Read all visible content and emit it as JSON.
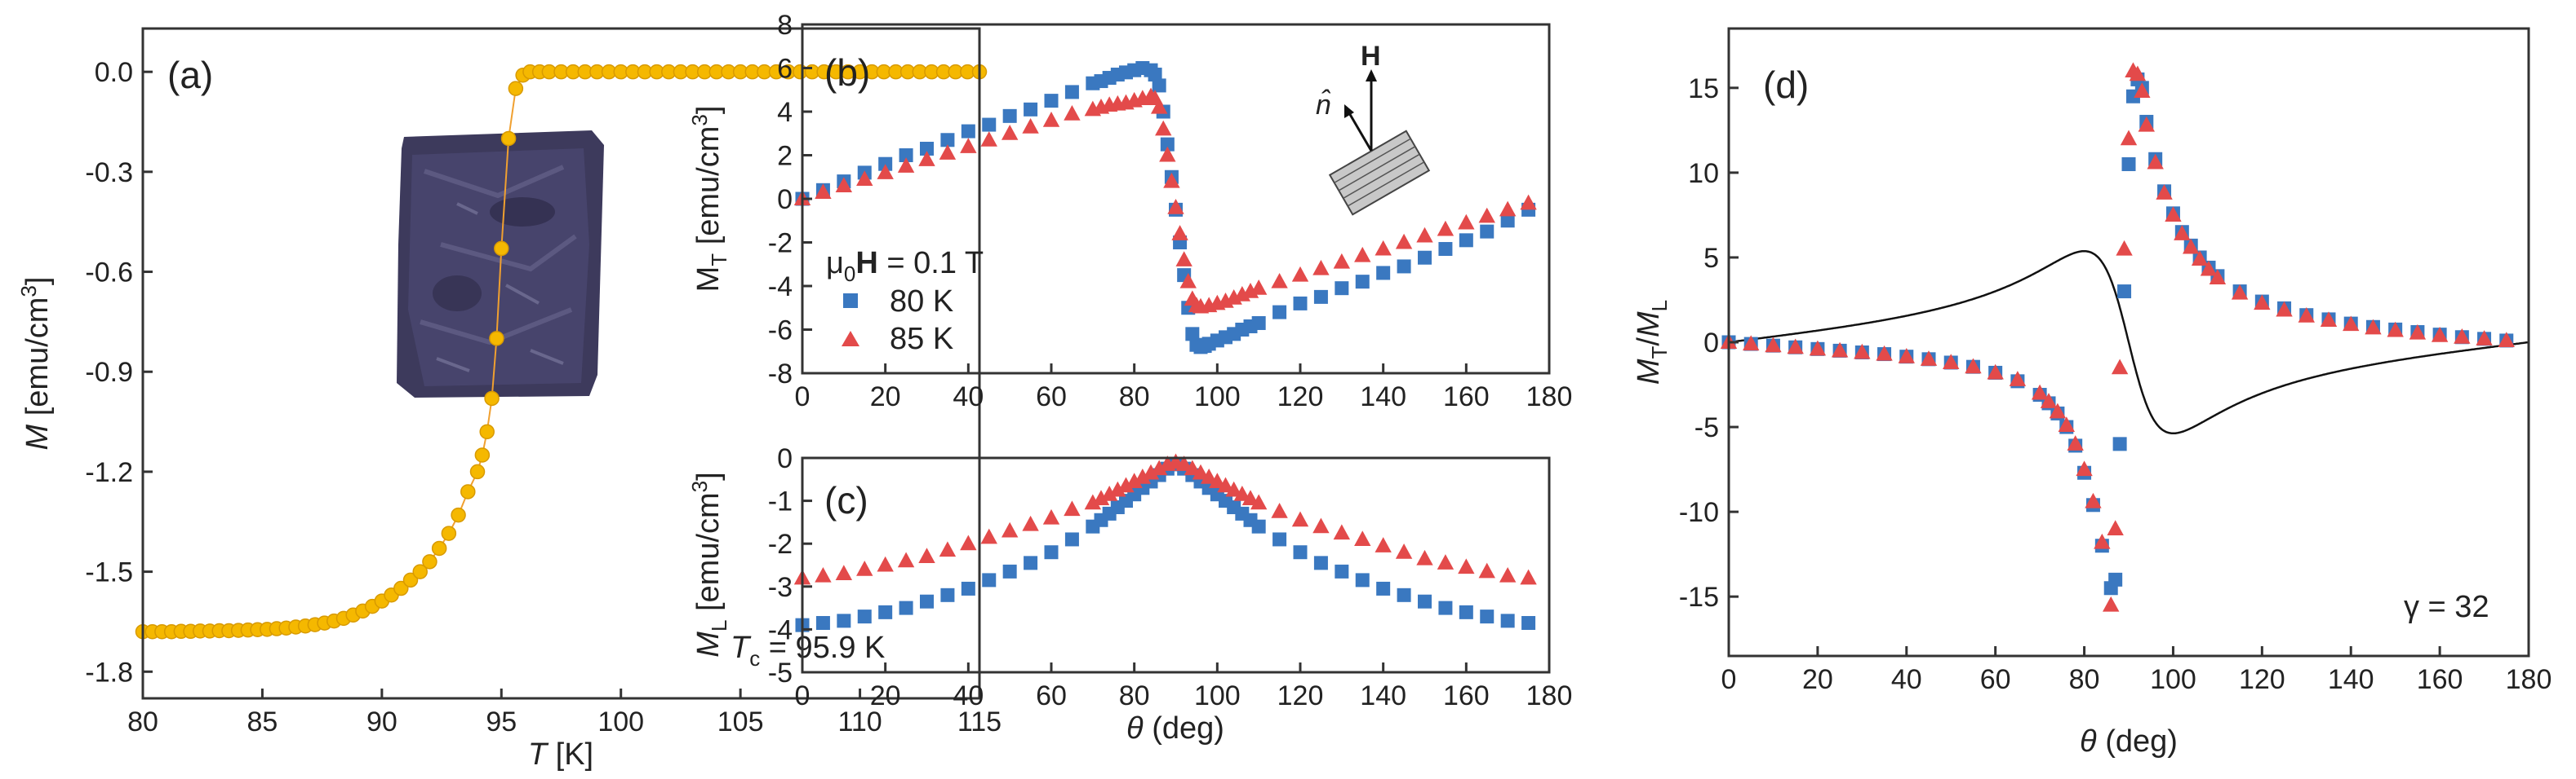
{
  "chart_data": [
    {
      "id": "a",
      "type": "scatter",
      "panel_label": "(a)",
      "xlabel_italic": "T",
      "xlabel_rest": " [K]",
      "ylabel_italic": "M",
      "ylabel_rest": " [emu/cm",
      "ylabel_sup": "3",
      "ylabel_end": "]",
      "xlim": [
        80,
        115
      ],
      "ylim": [
        -1.88,
        0.13
      ],
      "xticks": [
        80,
        85,
        90,
        95,
        100,
        105,
        110,
        115
      ],
      "yticks": [
        0.0,
        -0.3,
        -0.6,
        -0.9,
        -1.2,
        -1.5,
        -1.8
      ],
      "ytick_labels": [
        "0.0",
        "-0.3",
        "-0.6",
        "-0.9",
        "-1.2",
        "-1.5",
        "-1.8"
      ],
      "annotation_italic": "T",
      "annotation_sub": "c",
      "annotation_rest": " = 95.9 K",
      "marker_color": "#f5b800",
      "line_color": "#f0a030",
      "inset_description": "sample photo",
      "series": [
        {
          "name": "M(T)",
          "x": [
            80.0,
            80.4,
            80.8,
            81.2,
            81.6,
            82.0,
            82.4,
            82.8,
            83.2,
            83.6,
            84.0,
            84.4,
            84.8,
            85.2,
            85.6,
            86.0,
            86.4,
            86.8,
            87.2,
            87.6,
            88.0,
            88.4,
            88.8,
            89.2,
            89.6,
            90.0,
            90.4,
            90.8,
            91.2,
            91.6,
            92.0,
            92.4,
            92.8,
            93.2,
            93.6,
            94.0,
            94.2,
            94.4,
            94.6,
            94.8,
            95.0,
            95.3,
            95.6,
            95.9,
            96.2,
            96.6,
            97.0,
            97.5,
            98.0,
            98.5,
            99.0,
            99.5,
            100.0,
            100.5,
            101.0,
            101.5,
            102.0,
            102.5,
            103.0,
            103.5,
            104.0,
            104.5,
            105.0,
            105.5,
            106.0,
            106.5,
            107.0,
            107.5,
            108.0,
            108.5,
            109.0,
            109.5,
            110.0,
            110.5,
            111.0,
            111.5,
            112.0,
            112.5,
            113.0,
            113.5,
            114.0,
            114.5,
            115.0
          ],
          "y": [
            -1.68,
            -1.68,
            -1.68,
            -1.68,
            -1.679,
            -1.679,
            -1.678,
            -1.678,
            -1.677,
            -1.677,
            -1.676,
            -1.675,
            -1.674,
            -1.673,
            -1.671,
            -1.669,
            -1.666,
            -1.663,
            -1.659,
            -1.654,
            -1.648,
            -1.64,
            -1.63,
            -1.618,
            -1.604,
            -1.588,
            -1.57,
            -1.55,
            -1.525,
            -1.5,
            -1.47,
            -1.43,
            -1.385,
            -1.33,
            -1.26,
            -1.2,
            -1.15,
            -1.08,
            -0.98,
            -0.8,
            -0.53,
            -0.2,
            -0.05,
            -0.01,
            0.0,
            0.0,
            0.0,
            0.0,
            0.0,
            0.0,
            0.0,
            0.0,
            0.0,
            0.0,
            0.0,
            0.0,
            0.0,
            0.0,
            0.0,
            0.0,
            0.0,
            0.0,
            0.0,
            0.0,
            0.0,
            0.0,
            0.0,
            0.0,
            0.0,
            0.0,
            0.0,
            0.0,
            0.0,
            0.0,
            0.0,
            0.0,
            0.0,
            0.0,
            0.0,
            0.0,
            0.0,
            0.0,
            0.0
          ]
        }
      ]
    },
    {
      "id": "b",
      "type": "scatter",
      "panel_label": "(b)",
      "ylabel_main": "M",
      "ylabel_sub": "T",
      "ylabel_rest": " [emu/cm",
      "ylabel_sup": "3",
      "ylabel_end": "]",
      "xlim": [
        0,
        180
      ],
      "ylim": [
        -8,
        8
      ],
      "xticks": [
        0,
        20,
        40,
        60,
        80,
        100,
        120,
        140,
        160,
        180
      ],
      "yticks": [
        8,
        6,
        4,
        2,
        0,
        -2,
        -4,
        -6,
        -8
      ],
      "legend_title_mu": "μ",
      "legend_title_sub": "0",
      "legend_title_H": "H",
      "legend_title_rest": " = 0.1 T",
      "inset_H_label": "H",
      "inset_n_label": "n̂",
      "series": [
        {
          "name": "80 K",
          "color": "#3a78c0",
          "marker": "square",
          "x": [
            0,
            5,
            10,
            15,
            20,
            25,
            30,
            35,
            40,
            45,
            50,
            55,
            60,
            65,
            70,
            72,
            74,
            76,
            78,
            80,
            82,
            84,
            85,
            86,
            87,
            88,
            89,
            90,
            91,
            92,
            93,
            94,
            95,
            96,
            97,
            98,
            100,
            102,
            104,
            106,
            108,
            110,
            115,
            120,
            125,
            130,
            135,
            140,
            145,
            150,
            155,
            160,
            165,
            170,
            175
          ],
          "y": [
            0.0,
            0.4,
            0.8,
            1.2,
            1.6,
            2.0,
            2.3,
            2.7,
            3.1,
            3.4,
            3.8,
            4.1,
            4.5,
            4.9,
            5.3,
            5.4,
            5.55,
            5.7,
            5.8,
            5.9,
            6.0,
            5.9,
            5.7,
            5.2,
            4.0,
            2.5,
            1.0,
            -0.5,
            -2.0,
            -3.5,
            -5.0,
            -6.2,
            -6.7,
            -6.8,
            -6.75,
            -6.65,
            -6.5,
            -6.35,
            -6.2,
            -6.0,
            -5.85,
            -5.7,
            -5.2,
            -4.8,
            -4.5,
            -4.1,
            -3.8,
            -3.4,
            -3.1,
            -2.7,
            -2.3,
            -1.9,
            -1.5,
            -1.0,
            -0.5
          ]
        },
        {
          "name": "85 K",
          "color": "#e34a4a",
          "marker": "triangle",
          "x": [
            0,
            5,
            10,
            15,
            20,
            25,
            30,
            35,
            40,
            45,
            50,
            55,
            60,
            65,
            70,
            72,
            74,
            76,
            78,
            80,
            82,
            84,
            85,
            86,
            87,
            88,
            89,
            90,
            91,
            92,
            93,
            94,
            95,
            96,
            98,
            100,
            102,
            104,
            106,
            108,
            110,
            115,
            120,
            125,
            130,
            135,
            140,
            145,
            150,
            155,
            160,
            165,
            170,
            175
          ],
          "y": [
            0.0,
            0.3,
            0.6,
            0.9,
            1.2,
            1.5,
            1.8,
            2.1,
            2.4,
            2.7,
            3.0,
            3.3,
            3.6,
            3.9,
            4.1,
            4.2,
            4.3,
            4.35,
            4.4,
            4.5,
            4.6,
            4.7,
            4.6,
            4.2,
            3.2,
            2.0,
            0.8,
            -0.4,
            -1.6,
            -2.8,
            -3.8,
            -4.6,
            -4.9,
            -4.95,
            -4.9,
            -4.8,
            -4.7,
            -4.55,
            -4.4,
            -4.25,
            -4.1,
            -3.8,
            -3.5,
            -3.2,
            -2.9,
            -2.6,
            -2.3,
            -2.0,
            -1.7,
            -1.4,
            -1.1,
            -0.8,
            -0.5,
            -0.2
          ]
        }
      ]
    },
    {
      "id": "c",
      "type": "scatter",
      "panel_label": "(c)",
      "xlabel_theta": "θ",
      "xlabel_rest": " (deg)",
      "ylabel_main": "M",
      "ylabel_sub": "L",
      "ylabel_rest": " [emu/cm",
      "ylabel_sup": "3",
      "ylabel_end": "]",
      "xlim": [
        0,
        180
      ],
      "ylim": [
        -5,
        0
      ],
      "xticks": [
        0,
        20,
        40,
        60,
        80,
        100,
        120,
        140,
        160,
        180
      ],
      "yticks": [
        0,
        -1,
        -2,
        -3,
        -4,
        -5
      ],
      "series": [
        {
          "name": "80 K",
          "color": "#3a78c0",
          "marker": "square",
          "x": [
            0,
            5,
            10,
            15,
            20,
            25,
            30,
            35,
            40,
            45,
            50,
            55,
            60,
            65,
            70,
            72,
            74,
            76,
            78,
            80,
            82,
            84,
            86,
            88,
            90,
            92,
            94,
            96,
            98,
            100,
            102,
            104,
            106,
            108,
            110,
            115,
            120,
            125,
            130,
            135,
            140,
            145,
            150,
            155,
            160,
            165,
            170,
            175
          ],
          "y": [
            -3.9,
            -3.85,
            -3.8,
            -3.7,
            -3.6,
            -3.5,
            -3.35,
            -3.2,
            -3.05,
            -2.85,
            -2.65,
            -2.45,
            -2.2,
            -1.9,
            -1.6,
            -1.45,
            -1.3,
            -1.15,
            -1.0,
            -0.85,
            -0.7,
            -0.55,
            -0.4,
            -0.25,
            -0.15,
            -0.25,
            -0.4,
            -0.55,
            -0.7,
            -0.85,
            -1.0,
            -1.15,
            -1.3,
            -1.45,
            -1.6,
            -1.9,
            -2.2,
            -2.45,
            -2.65,
            -2.85,
            -3.05,
            -3.2,
            -3.35,
            -3.5,
            -3.6,
            -3.7,
            -3.8,
            -3.85
          ]
        },
        {
          "name": "85 K",
          "color": "#e34a4a",
          "marker": "triangle",
          "x": [
            0,
            5,
            10,
            15,
            20,
            25,
            30,
            35,
            40,
            45,
            50,
            55,
            60,
            65,
            70,
            72,
            74,
            76,
            78,
            80,
            82,
            84,
            86,
            88,
            90,
            92,
            94,
            96,
            98,
            100,
            102,
            104,
            106,
            108,
            110,
            115,
            120,
            125,
            130,
            135,
            140,
            145,
            150,
            155,
            160,
            165,
            170,
            175
          ],
          "y": [
            -2.8,
            -2.75,
            -2.7,
            -2.6,
            -2.5,
            -2.4,
            -2.3,
            -2.15,
            -2.0,
            -1.85,
            -1.7,
            -1.55,
            -1.4,
            -1.2,
            -1.05,
            -0.95,
            -0.85,
            -0.75,
            -0.65,
            -0.55,
            -0.45,
            -0.35,
            -0.25,
            -0.15,
            -0.1,
            -0.15,
            -0.25,
            -0.35,
            -0.45,
            -0.55,
            -0.65,
            -0.75,
            -0.85,
            -0.95,
            -1.05,
            -1.25,
            -1.45,
            -1.6,
            -1.75,
            -1.9,
            -2.05,
            -2.2,
            -2.35,
            -2.45,
            -2.55,
            -2.65,
            -2.75,
            -2.8
          ]
        }
      ]
    },
    {
      "id": "d",
      "type": "scatter",
      "panel_label": "(d)",
      "xlabel_theta": "θ",
      "xlabel_rest": " (deg)",
      "ylabel_a": "M",
      "ylabel_a_sub": "T",
      "ylabel_slash": "/",
      "ylabel_b": "M",
      "ylabel_b_sub": "L",
      "xlim": [
        0,
        180
      ],
      "ylim": [
        -18.5,
        18.5
      ],
      "xticks": [
        0,
        20,
        40,
        60,
        80,
        100,
        120,
        140,
        160,
        180
      ],
      "yticks": [
        15,
        10,
        5,
        0,
        -5,
        -10,
        -15
      ],
      "annotation": "γ = 32",
      "fit_gamma": 32,
      "series": [
        {
          "name": "80 K",
          "color": "#3a78c0",
          "marker": "square",
          "x": [
            0,
            5,
            10,
            15,
            20,
            25,
            30,
            35,
            40,
            45,
            50,
            55,
            60,
            65,
            70,
            72,
            74,
            76,
            78,
            80,
            82,
            84,
            86,
            87,
            88,
            89,
            90,
            91,
            92,
            93,
            94,
            96,
            98,
            100,
            102,
            104,
            106,
            108,
            110,
            115,
            120,
            125,
            130,
            135,
            140,
            145,
            150,
            155,
            160,
            165,
            170,
            175
          ],
          "y": [
            0.0,
            -0.1,
            -0.2,
            -0.3,
            -0.4,
            -0.5,
            -0.6,
            -0.7,
            -0.85,
            -1.0,
            -1.2,
            -1.45,
            -1.8,
            -2.3,
            -3.1,
            -3.6,
            -4.2,
            -5.0,
            -6.1,
            -7.7,
            -9.6,
            -12.0,
            -14.5,
            -14.0,
            -6.0,
            3.0,
            10.5,
            14.5,
            15.5,
            15.0,
            13.0,
            10.8,
            8.9,
            7.6,
            6.5,
            5.7,
            5.0,
            4.4,
            3.9,
            3.0,
            2.4,
            2.0,
            1.6,
            1.35,
            1.1,
            0.9,
            0.75,
            0.6,
            0.45,
            0.3,
            0.2,
            0.1
          ]
        },
        {
          "name": "85 K",
          "color": "#e34a4a",
          "marker": "triangle",
          "x": [
            0,
            5,
            10,
            15,
            20,
            25,
            30,
            35,
            40,
            45,
            50,
            55,
            60,
            65,
            70,
            72,
            74,
            76,
            78,
            80,
            82,
            84,
            86,
            87,
            88,
            89,
            90,
            91,
            92,
            93,
            94,
            96,
            98,
            100,
            102,
            104,
            106,
            108,
            110,
            115,
            120,
            125,
            130,
            135,
            140,
            145,
            150,
            155,
            160,
            165,
            170,
            175
          ],
          "y": [
            0.0,
            -0.1,
            -0.2,
            -0.3,
            -0.4,
            -0.5,
            -0.6,
            -0.7,
            -0.85,
            -1.0,
            -1.2,
            -1.45,
            -1.8,
            -2.2,
            -3.0,
            -3.5,
            -4.1,
            -4.9,
            -6.0,
            -7.5,
            -9.4,
            -11.8,
            -15.5,
            -11.0,
            -1.5,
            5.5,
            12.0,
            16.0,
            15.8,
            14.8,
            12.8,
            10.6,
            8.8,
            7.5,
            6.4,
            5.6,
            4.9,
            4.3,
            3.8,
            2.9,
            2.3,
            1.9,
            1.55,
            1.3,
            1.05,
            0.85,
            0.7,
            0.55,
            0.4,
            0.3,
            0.2,
            0.1
          ]
        }
      ]
    }
  ]
}
